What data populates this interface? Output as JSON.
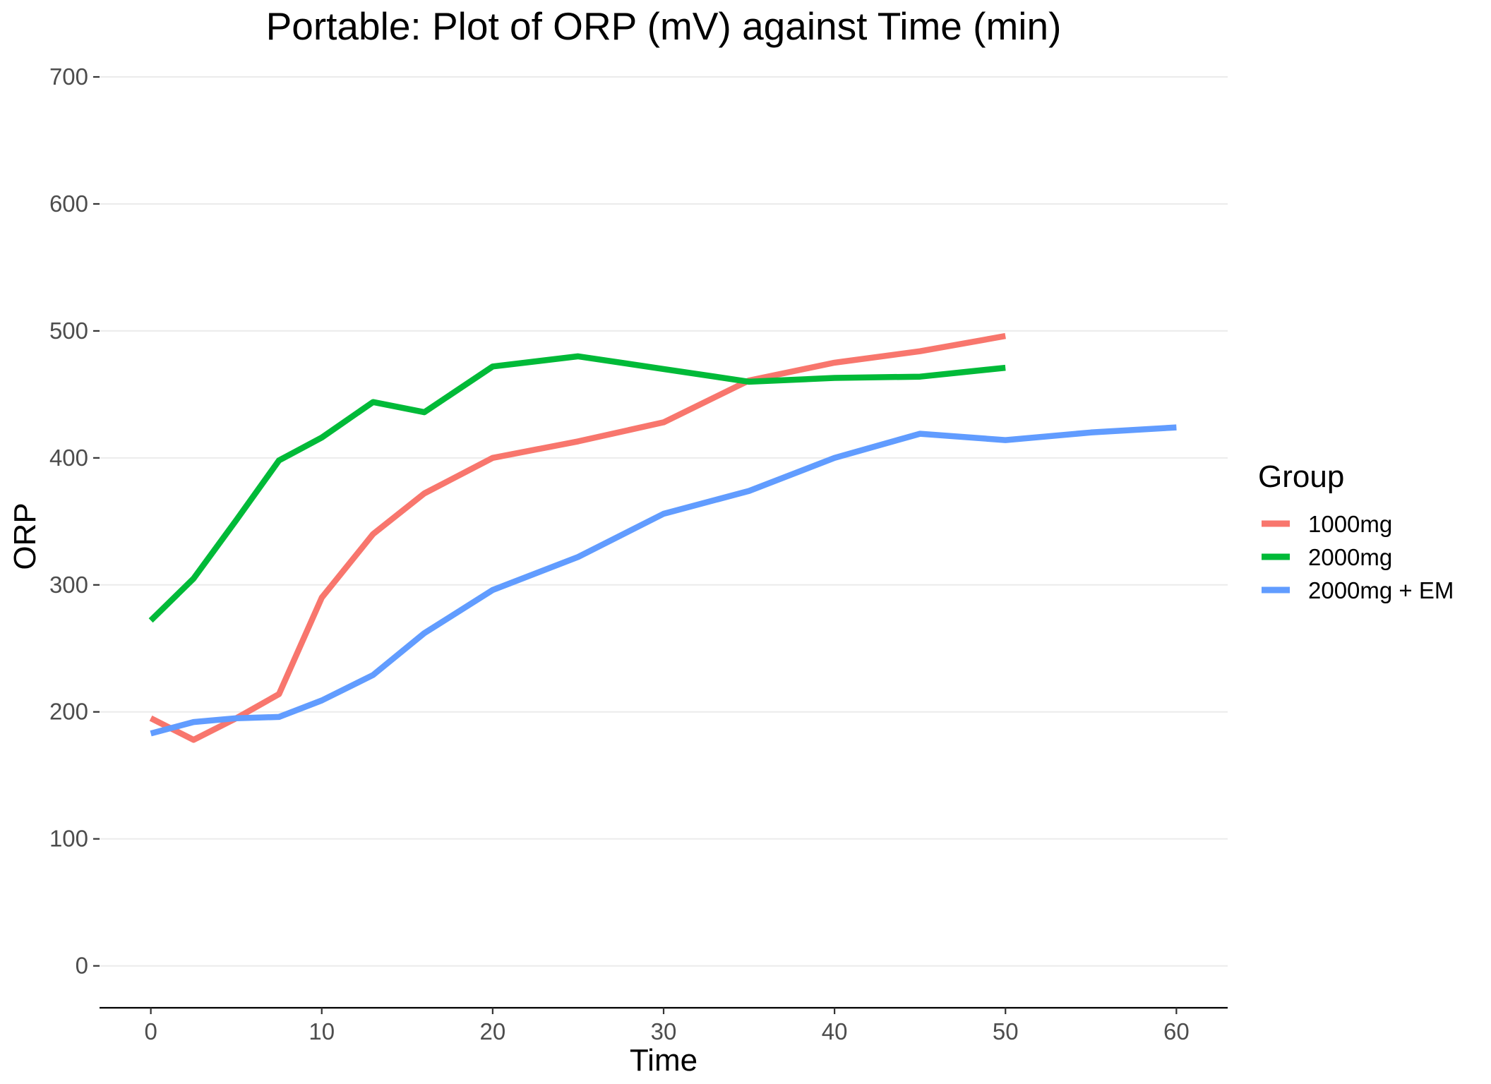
{
  "chart_data": {
    "type": "line",
    "title": "Portable: Plot of ORP (mV) against Time (min)",
    "xlabel": "Time",
    "ylabel": "ORP",
    "xlim": [
      -3,
      63
    ],
    "ylim": [
      -33,
      705
    ],
    "x_ticks": [
      0,
      10,
      20,
      30,
      40,
      50,
      60
    ],
    "y_ticks": [
      0,
      100,
      200,
      300,
      400,
      500,
      600,
      700
    ],
    "grid": "horizontal",
    "legend": {
      "title": "Group",
      "position": "right"
    },
    "series": [
      {
        "name": "1000mg",
        "color": "#F8766D",
        "x": [
          0,
          2.5,
          5,
          7.5,
          10,
          13,
          16,
          20,
          25,
          30,
          35,
          40,
          45,
          50
        ],
        "y": [
          195,
          178,
          195,
          214,
          290,
          340,
          372,
          400,
          413,
          428,
          461,
          475,
          484,
          496
        ]
      },
      {
        "name": "2000mg",
        "color": "#00BA38",
        "x": [
          0,
          2.5,
          5,
          7.5,
          10,
          13,
          16,
          20,
          25,
          30,
          35,
          40,
          45,
          50
        ],
        "y": [
          272,
          305,
          351,
          398,
          416,
          444,
          436,
          472,
          480,
          470,
          460,
          463,
          464,
          471
        ]
      },
      {
        "name": "2000mg + EM",
        "color": "#619CFF",
        "x": [
          0,
          2.5,
          5,
          7.5,
          10,
          13,
          16,
          20,
          25,
          30,
          35,
          40,
          45,
          50,
          55,
          60
        ],
        "y": [
          183,
          192,
          195,
          196,
          209,
          229,
          262,
          296,
          322,
          356,
          374,
          400,
          419,
          414,
          420,
          424
        ]
      }
    ]
  }
}
